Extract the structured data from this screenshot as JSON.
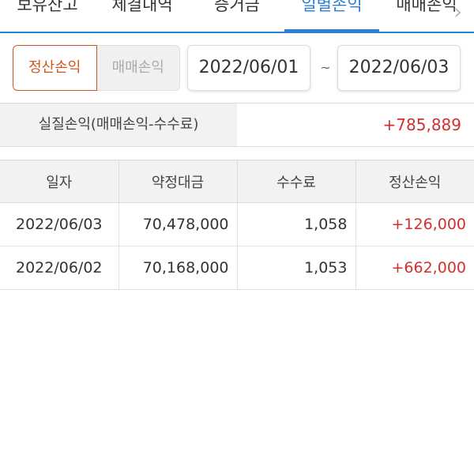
{
  "tabs": [
    "보유잔고",
    "체결내역",
    "증거금",
    "일별손익",
    "매매손익"
  ],
  "active_tab": 3,
  "toggle": {
    "settlement": "정산손익",
    "trading": "매매손익"
  },
  "date_from": "2022/06/01",
  "date_to": "2022/06/03",
  "tilde": "~",
  "summary": {
    "label": "실질손익(매매손익-수수료)",
    "value": "+785,889"
  },
  "table": {
    "headers": [
      "일자",
      "약정대금",
      "수수료",
      "정산손익"
    ],
    "rows": [
      [
        "2022/06/03",
        "70,478,000",
        "1,058",
        "+126,000"
      ],
      [
        "2022/06/02",
        "70,168,000",
        "1,053",
        "+662,000"
      ]
    ]
  },
  "colors": {
    "accent": "#2a7fd4",
    "profit": "#d32f2f",
    "toggle_active": "#d2541e"
  }
}
